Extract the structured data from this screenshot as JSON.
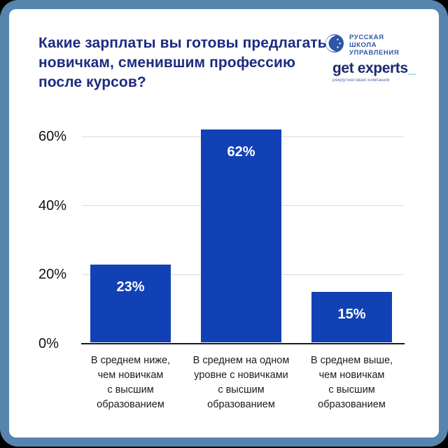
{
  "title": "Какие зарплаты вы готовы предлагать\nновичкам, сменившим профессию\nпосле курсов?",
  "logos": {
    "rsu": {
      "lines": [
        "РУССКАЯ",
        "ШКОЛА",
        "УПРАВЛЕНИЯ"
      ]
    },
    "get_experts": {
      "name": "get experts",
      "underscore": "_",
      "tagline": "рекрутинговая компания"
    }
  },
  "chart_data": {
    "type": "bar",
    "title": "Какие зарплаты вы готовы предлагать новичкам, сменившим профессию после курсов?",
    "categories": [
      "В среднем ниже,\nчем новичкам\nс высшим\nобразованием",
      "В среднем на одном\nуровне с новичками\nс высшим\nобразованием",
      "В среднем выше,\nчем новичкам\nс высшим\nобразованием"
    ],
    "values": [
      23,
      62,
      15
    ],
    "value_labels": [
      "23%",
      "62%",
      "15%"
    ],
    "yticks": [
      {
        "value": 0,
        "label": "0%"
      },
      {
        "value": 20,
        "label": "20%"
      },
      {
        "value": 40,
        "label": "40%"
      },
      {
        "value": 60,
        "label": "60%"
      }
    ],
    "ylim": [
      0,
      65
    ],
    "grid": true,
    "legend": "none",
    "bar_color": "#1141b4",
    "value_label_color": "#ffffff"
  },
  "colors": {
    "frame": "#5684ad",
    "card": "#ffffff",
    "title_text": "#1c2b80",
    "axis": "#1a1a1a",
    "gridline": "#d9d9d9",
    "tick_text": "#111111",
    "category_text": "#1c1c1c",
    "rsu_blue": "#2e56a6",
    "ge_navy": "#1c2b6e",
    "ge_teal": "#3ec6c6"
  }
}
